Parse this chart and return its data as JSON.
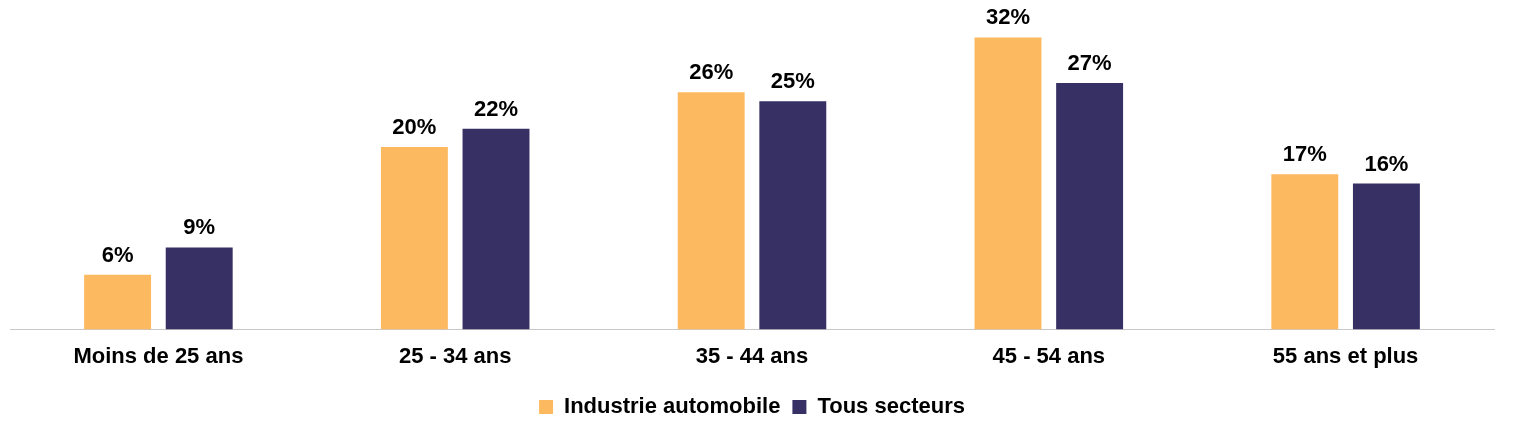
{
  "chart_data": {
    "type": "bar",
    "categories": [
      "Moins de 25 ans",
      "25 - 34 ans",
      "35 - 44 ans",
      "45 - 54 ans",
      "55 ans et plus"
    ],
    "series": [
      {
        "name": "Industrie automobile",
        "color": "#fdb95f",
        "values": [
          6,
          20,
          26,
          32,
          17
        ],
        "value_labels": [
          "6%",
          "20%",
          "26%",
          "32%",
          "17%"
        ]
      },
      {
        "name": "Tous secteurs",
        "color": "#373064",
        "values": [
          9,
          22,
          25,
          27,
          16
        ],
        "value_labels": [
          "9%",
          "22%",
          "25%",
          "27%",
          "16%"
        ]
      }
    ],
    "legend": "bottom",
    "grid": false
  }
}
